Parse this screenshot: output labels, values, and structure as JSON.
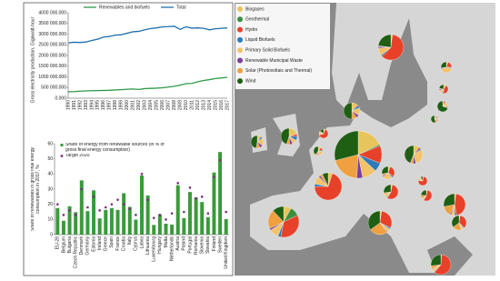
{
  "chart_data": [
    {
      "type": "line",
      "y_label": "Gross electricity production, Gigawatt-hour",
      "categories": [
        "1990",
        "1991",
        "1992",
        "1993",
        "1994",
        "1995",
        "1996",
        "1997",
        "1998",
        "1999",
        "2000",
        "2001",
        "2002",
        "2003",
        "2004",
        "2005",
        "2006",
        "2007",
        "2008",
        "2009",
        "2010",
        "2011",
        "2012",
        "2013",
        "2014",
        "2015",
        "2016",
        "2017"
      ],
      "series": [
        {
          "name": "Renewables and biofuels",
          "color": "#2e9a4a",
          "values": [
            300000,
            310000,
            330000,
            340000,
            350000,
            355000,
            365000,
            370000,
            385000,
            400000,
            420000,
            430000,
            410000,
            450000,
            460000,
            470000,
            490000,
            520000,
            560000,
            610000,
            680000,
            690000,
            770000,
            830000,
            870000,
            920000,
            950000,
            980000
          ]
        },
        {
          "name": "Total",
          "color": "#1f6fb0",
          "values": [
            2590000,
            2620000,
            2610000,
            2630000,
            2700000,
            2760000,
            2860000,
            2890000,
            2950000,
            2970000,
            3040000,
            3110000,
            3130000,
            3200000,
            3260000,
            3290000,
            3340000,
            3350000,
            3370000,
            3220000,
            3340000,
            3280000,
            3290000,
            3270000,
            3200000,
            3250000,
            3270000,
            3290000
          ]
        }
      ],
      "ylim": [
        0,
        4000000
      ],
      "yticks": [
        {
          "value": 0,
          "label": "0.000"
        },
        {
          "value": 500000,
          "label": "500 000.000"
        },
        {
          "value": 1000000,
          "label": "1000 000.000"
        },
        {
          "value": 1500000,
          "label": "1500 000.000"
        },
        {
          "value": 2000000,
          "label": "2000 000.000"
        },
        {
          "value": 2500000,
          "label": "2500 000.000"
        },
        {
          "value": 3000000,
          "label": "3000 000.000"
        },
        {
          "value": 3500000,
          "label": "3500 000.000"
        },
        {
          "value": 4000000,
          "label": "4000 000.000"
        }
      ]
    },
    {
      "type": "bar",
      "y_label": "Share of renewables in gross final energy consumption in 2017, %",
      "categories": [
        "EU-28",
        "Belgium",
        "Bulgaria",
        "Czech Republic",
        "Denmark",
        "Germany",
        "Estonia",
        "Ireland",
        "Greece",
        "Spain",
        "France",
        "Croatia",
        "Italy",
        "Cyprus",
        "Latvia",
        "Lithuania",
        "Luxembourg",
        "Hungary",
        "Malta",
        "Netherlands",
        "Austria",
        "Poland",
        "Portugal",
        "Romania",
        "Slovenia",
        "Slovakia",
        "Finland",
        "Sweden",
        "United Kingdom"
      ],
      "series": [
        {
          "name": "Share of energy from renewable sources (in % of gross final energy consumption)",
          "color": "#3a9a3a",
          "values": [
            17.5,
            9.1,
            18.7,
            14.8,
            35.8,
            15.5,
            29.2,
            10.7,
            16.3,
            17.5,
            16.3,
            27.3,
            18.3,
            9.9,
            39,
            25.8,
            6.4,
            13.3,
            7.2,
            6.6,
            32.6,
            10.9,
            28.1,
            24.5,
            21.5,
            11.5,
            41,
            54.5,
            10.2
          ]
        },
        {
          "name": "Target 2020",
          "color": "#7a2f7a",
          "type": "scatter",
          "values": [
            20,
            13,
            16,
            13,
            30,
            18,
            25,
            16,
            18,
            20,
            23,
            20,
            17,
            13,
            40,
            23,
            11,
            13,
            10,
            14,
            34,
            15,
            31,
            24,
            25,
            14,
            38,
            49,
            15
          ]
        }
      ],
      "ylim": [
        0,
        60
      ],
      "yticks": [
        0,
        10,
        20,
        30,
        40,
        50,
        60
      ]
    }
  ],
  "map": {
    "legend": [
      {
        "name": "Biogases",
        "color": "#e8c55a"
      },
      {
        "name": "Geothermal",
        "color": "#3d8f3d"
      },
      {
        "name": "Hydro",
        "color": "#e8412a"
      },
      {
        "name": "Liquid Biofuels",
        "color": "#2b7bb9"
      },
      {
        "name": "Primary Solid Biofuels",
        "color": "#f2c36b"
      },
      {
        "name": "Renewable Municipal Waste",
        "color": "#7b3f9e"
      },
      {
        "name": "Solar (Photovoltaic and Thermal)",
        "color": "#f0a040"
      },
      {
        "name": "Wind",
        "color": "#1f5f14"
      }
    ],
    "pies": [
      {
        "values": [
          2,
          0,
          60,
          2,
          10,
          2,
          1,
          23
        ]
      },
      {
        "values": [
          5,
          0,
          20,
          3,
          40,
          3,
          2,
          27
        ]
      },
      {
        "values": [
          10,
          0,
          40,
          5,
          15,
          5,
          3,
          22
        ]
      },
      {
        "values": [
          3,
          0,
          5,
          2,
          15,
          3,
          2,
          70
        ]
      },
      {
        "values": [
          8,
          0,
          5,
          5,
          10,
          5,
          12,
          55
        ]
      },
      {
        "values": [
          12,
          0,
          2,
          5,
          15,
          6,
          10,
          50
        ]
      },
      {
        "values": [
          20,
          0,
          5,
          8,
          10,
          6,
          6,
          45
        ]
      },
      {
        "values": [
          8,
          0,
          2,
          5,
          20,
          8,
          10,
          47
        ]
      },
      {
        "values": [
          18,
          1,
          12,
          6,
          10,
          4,
          20,
          29
        ]
      },
      {
        "values": [
          10,
          0,
          3,
          3,
          30,
          5,
          5,
          44
        ]
      },
      {
        "values": [
          5,
          0,
          65,
          2,
          8,
          2,
          3,
          15
        ]
      },
      {
        "values": [
          12,
          0,
          10,
          5,
          20,
          3,
          10,
          40
        ]
      },
      {
        "values": [
          5,
          0,
          30,
          4,
          25,
          3,
          5,
          28
        ]
      },
      {
        "values": [
          5,
          0,
          70,
          3,
          10,
          2,
          3,
          7
        ]
      },
      {
        "values": [
          3,
          0,
          55,
          2,
          8,
          1,
          4,
          27
        ]
      },
      {
        "values": [
          2,
          0,
          75,
          2,
          10,
          1,
          2,
          8
        ]
      },
      {
        "values": [
          8,
          10,
          35,
          3,
          10,
          2,
          20,
          12
        ]
      },
      {
        "values": [
          3,
          0,
          55,
          2,
          5,
          1,
          10,
          24
        ]
      },
      {
        "values": [
          2,
          0,
          35,
          2,
          5,
          1,
          20,
          35
        ]
      },
      {
        "values": [
          2,
          0,
          45,
          3,
          5,
          2,
          15,
          28
        ]
      },
      {
        "values": [
          2,
          0,
          30,
          2,
          5,
          1,
          25,
          35
        ]
      },
      {
        "values": [
          1,
          0,
          60,
          1,
          5,
          1,
          5,
          27
        ]
      }
    ]
  }
}
